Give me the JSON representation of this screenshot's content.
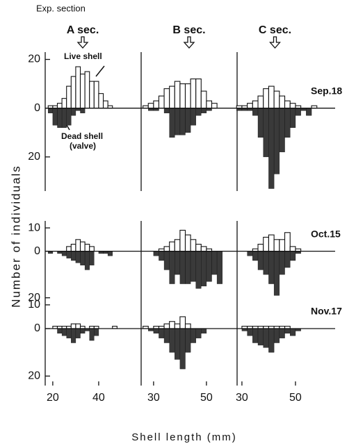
{
  "chart_data": {
    "type": "mirrored-histogram",
    "header": "Exp. section",
    "ylabel": "Number of individuals",
    "xlabel": "Shell length (mm)",
    "annotations": [
      "Live shell",
      "Dead shell",
      "(valve)"
    ],
    "colors": {
      "live": "#ffffff",
      "dead": "#3a3a3a"
    },
    "columns": [
      {
        "name": "A sec.",
        "xlim": [
          16.7,
          58.5
        ],
        "xticks": [
          20,
          40
        ],
        "bins": [
          18,
          20,
          22,
          24,
          26,
          28,
          30,
          32,
          34,
          36,
          38,
          40,
          42,
          44,
          46,
          48
        ]
      },
      {
        "name": "B sec.",
        "xlim": [
          25.3,
          61.6
        ],
        "xticks": [
          30,
          50
        ],
        "bins": [
          26,
          28,
          30,
          32,
          34,
          36,
          38,
          40,
          42,
          44,
          46,
          48,
          50,
          52,
          54,
          56,
          58,
          60
        ]
      },
      {
        "name": "C sec.",
        "xlim": [
          28.2,
          64.3
        ],
        "xticks": [
          30,
          50
        ],
        "bins": [
          28,
          30,
          32,
          34,
          36,
          38,
          40,
          42,
          44,
          46,
          48,
          50,
          52,
          54,
          56,
          58,
          60,
          62
        ]
      }
    ],
    "rows": [
      {
        "name": "Sep.18",
        "ylim": [
          -34,
          23
        ],
        "yticks": [
          {
            "value": 20,
            "label": "20"
          },
          0,
          {
            "value": -20,
            "label": "20"
          }
        ],
        "panels": [
          {
            "live": [
              1,
              1,
              2,
              4,
              9,
              13,
              17,
              14,
              15,
              11,
              11,
              6,
              3,
              1,
              0
            ],
            "dead": [
              -2,
              -7,
              -8,
              -8,
              -7,
              -3,
              -1,
              -2,
              0,
              0,
              0,
              0,
              0,
              0,
              0
            ]
          },
          {
            "live": [
              1,
              2,
              3,
              5,
              8,
              9,
              11,
              10,
              10,
              12,
              12,
              7,
              3,
              2,
              0,
              0,
              0
            ],
            "dead": [
              0,
              -1,
              -1,
              0,
              -2,
              -12,
              -11,
              -11,
              -10,
              -7,
              -3,
              -2,
              -1,
              0,
              0,
              0,
              0
            ]
          },
          {
            "live": [
              1,
              1,
              2,
              3,
              5,
              8,
              9,
              7,
              5,
              3,
              2,
              1,
              0,
              0,
              1,
              0,
              0
            ],
            "dead": [
              -1,
              -1,
              -1,
              -3,
              -12,
              -20,
              -33,
              -27,
              -18,
              -12,
              -8,
              -3,
              -1,
              -3,
              0,
              0,
              0
            ]
          }
        ]
      },
      {
        "name": "Oct.15",
        "ylim": [
          -21,
          13
        ],
        "yticks": [
          10,
          0,
          {
            "value": -20,
            "label": "20"
          }
        ],
        "panels": [
          {
            "live": [
              0,
              0,
              0,
              0,
              2,
              3,
              5,
              4,
              3,
              2,
              0,
              0,
              0,
              0,
              0
            ],
            "dead": [
              -1,
              0,
              -1,
              -2,
              -3,
              -4,
              -5,
              -6,
              -8,
              -6,
              0,
              -1,
              -1,
              -2,
              0
            ]
          },
          {
            "live": [
              0,
              0,
              0,
              1,
              2,
              4,
              5,
              9,
              7,
              5,
              3,
              2,
              1,
              0,
              0,
              0,
              0
            ],
            "dead": [
              0,
              0,
              -2,
              -4,
              -8,
              -14,
              -10,
              -14,
              -14,
              -13,
              -16,
              -15,
              -13,
              -10,
              -14,
              0,
              0
            ]
          },
          {
            "live": [
              0,
              0,
              0,
              1,
              3,
              6,
              7,
              5,
              5,
              8,
              2,
              1,
              0,
              0,
              0,
              0,
              0
            ],
            "dead": [
              0,
              0,
              -2,
              -4,
              -8,
              -10,
              -14,
              -19,
              -10,
              -7,
              -4,
              -1,
              0,
              0,
              0,
              0,
              0
            ]
          }
        ]
      },
      {
        "name": "Nov.17",
        "ylim": [
          -24,
          12
        ],
        "yticks": [
          10,
          0,
          {
            "value": -20,
            "label": "20"
          }
        ],
        "panels": [
          {
            "live": [
              0,
              1,
              1,
              1,
              1,
              2,
              2,
              1,
              0,
              1,
              1,
              0,
              0,
              0,
              1
            ],
            "dead": [
              0,
              0,
              -2,
              -3,
              -4,
              -6,
              -4,
              -2,
              -1,
              -5,
              -3,
              0,
              0,
              0,
              0
            ]
          },
          {
            "live": [
              1,
              0,
              1,
              1,
              2,
              3,
              2,
              5,
              2,
              0,
              0,
              0,
              0,
              0,
              0,
              0,
              0
            ],
            "dead": [
              0,
              -1,
              -2,
              -4,
              -6,
              -10,
              -13,
              -17,
              -10,
              -6,
              -4,
              -2,
              0,
              0,
              0,
              0,
              0
            ]
          },
          {
            "live": [
              0,
              1,
              1,
              1,
              1,
              1,
              1,
              1,
              1,
              1,
              0,
              0,
              0,
              0,
              0,
              0,
              0
            ],
            "dead": [
              0,
              -1,
              -3,
              -6,
              -7,
              -8,
              -10,
              -6,
              -4,
              -2,
              -3,
              -1,
              0,
              0,
              0,
              0,
              0
            ]
          }
        ]
      }
    ]
  }
}
